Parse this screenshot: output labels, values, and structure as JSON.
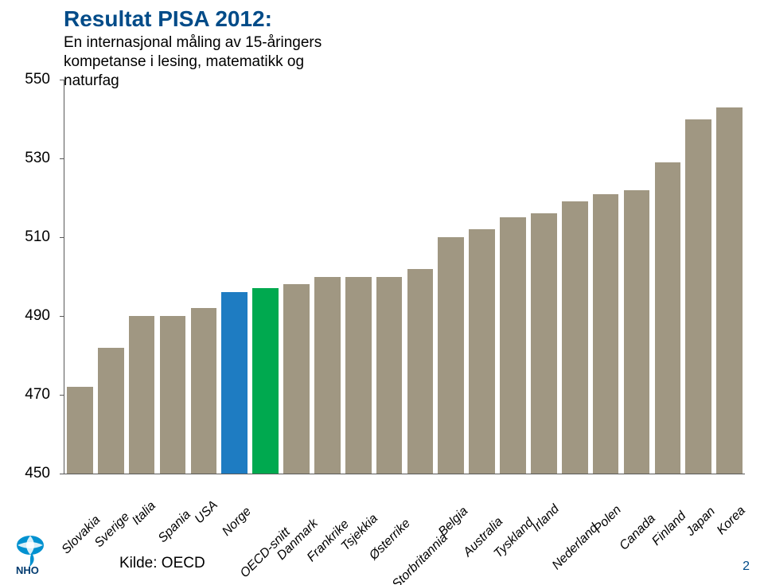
{
  "title": "Resultat PISA 2012:",
  "subtitle": "En internasjonal måling av 15-åringers\nkompetanse i lesing, matematikk og\nnaturfag",
  "source_label": "Kilde: OECD",
  "page_number": "2",
  "logo_text": "NHO",
  "chart": {
    "type": "bar",
    "ylim": [
      450,
      550
    ],
    "yticks": [
      450,
      470,
      490,
      510,
      530,
      550
    ],
    "background_color": "#ffffff",
    "axis_color": "#595959",
    "tick_label_color": "#000000",
    "label_fontsize": 19,
    "label_font_style": "italic",
    "bar_gap_ratio": 0.16,
    "categories": [
      "Slovakia",
      "Sverige",
      "Italia",
      "Spania",
      "USA",
      "Norge",
      "OECD-snitt",
      "Danmark",
      "Frankrike",
      "Tsjekkia",
      "Østerrike",
      "Storbritannia",
      "Belgia",
      "Australia",
      "Tyskland",
      "Irland",
      "Nederland",
      "Polen",
      "Canada",
      "Finland",
      "Japan",
      "Korea"
    ],
    "values": [
      472,
      482,
      490,
      490,
      492,
      496,
      497,
      498,
      500,
      500,
      500,
      502,
      510,
      512,
      515,
      516,
      519,
      521,
      522,
      529,
      540,
      543
    ],
    "bar_colors": [
      "#a09782",
      "#a09782",
      "#a09782",
      "#a09782",
      "#a09782",
      "#1e7cc2",
      "#00a94f",
      "#a09782",
      "#a09782",
      "#a09782",
      "#a09782",
      "#a09782",
      "#a09782",
      "#a09782",
      "#a09782",
      "#a09782",
      "#a09782",
      "#a09782",
      "#a09782",
      "#a09782",
      "#a09782",
      "#a09782"
    ]
  },
  "logo_colors": {
    "globe": "#0091d0",
    "stem": "#0091d0",
    "text": "#003a6f"
  }
}
